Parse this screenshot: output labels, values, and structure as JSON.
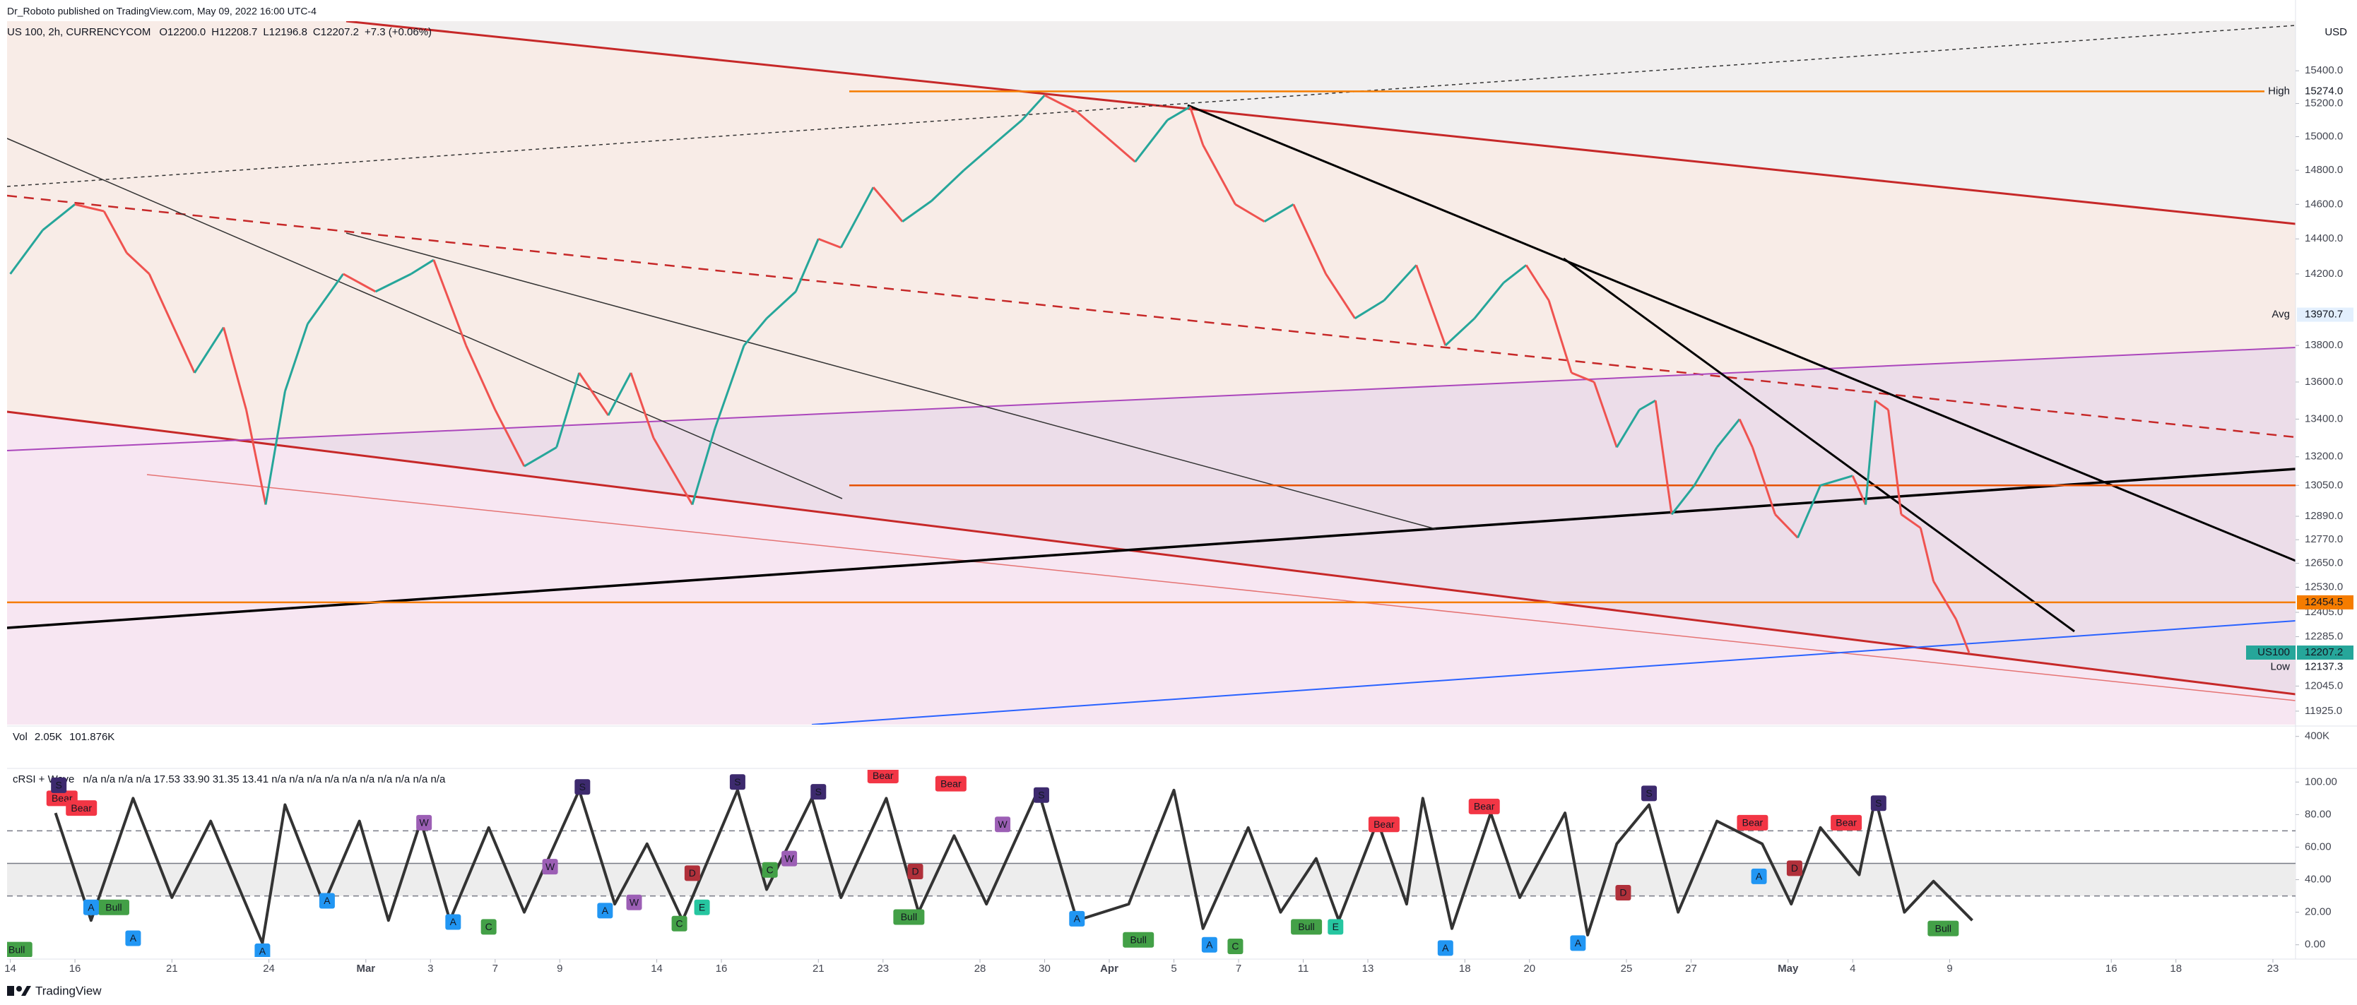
{
  "header": {
    "publisher": "Dr_Roboto published on TradingView.com, May 09, 2022 16:00 UTC-4",
    "footer": "TradingView"
  },
  "chart_data": [
    {
      "type": "candles",
      "title": "US 100, 2h, CURRENCYCOM",
      "legend_values": [
        "O12200.0",
        "H12208.7",
        "L12196.8",
        "C12207.2",
        "+7.3 (+0.06%)"
      ],
      "currency": "USD",
      "log_scale": true,
      "ylim": [
        11861,
        15708
      ],
      "xlim": [
        -0.1,
        70.7
      ],
      "yticks": [
        {
          "value": 15400,
          "label": "15400.0"
        },
        {
          "value": 15200,
          "label": "15200.0"
        },
        {
          "value": 15000,
          "label": "15000.0"
        },
        {
          "value": 14800,
          "label": "14800.0"
        },
        {
          "value": 14600,
          "label": "14600.0"
        },
        {
          "value": 14400,
          "label": "14400.0"
        },
        {
          "value": 14200,
          "label": "14200.0"
        },
        {
          "value": 13800,
          "label": "13800.0"
        },
        {
          "value": 13600,
          "label": "13600.0"
        },
        {
          "value": 13400,
          "label": "13400.0"
        },
        {
          "value": 13200,
          "label": "13200.0"
        },
        {
          "value": 13050,
          "label": "13050.0"
        },
        {
          "value": 12890,
          "label": "12890.0"
        },
        {
          "value": 12770,
          "label": "12770.0"
        },
        {
          "value": 12650,
          "label": "12650.0"
        },
        {
          "value": 12530,
          "label": "12530.0"
        },
        {
          "value": 12405,
          "label": "12405.0"
        },
        {
          "value": 12285,
          "label": "12285.0"
        },
        {
          "value": 12045,
          "label": "12045.0"
        },
        {
          "value": 11925,
          "label": "11925.0"
        }
      ],
      "xticks": [
        {
          "value": 0,
          "label": "14"
        },
        {
          "value": 2,
          "label": "16"
        },
        {
          "value": 5,
          "label": "21"
        },
        {
          "value": 8,
          "label": "24"
        },
        {
          "value": 11,
          "label": "Mar"
        },
        {
          "value": 13,
          "label": "3"
        },
        {
          "value": 15,
          "label": "7"
        },
        {
          "value": 17,
          "label": "9"
        },
        {
          "value": 20,
          "label": "14"
        },
        {
          "value": 22,
          "label": "16"
        },
        {
          "value": 25,
          "label": "21"
        },
        {
          "value": 27,
          "label": "23"
        },
        {
          "value": 30,
          "label": "28"
        },
        {
          "value": 32,
          "label": "30"
        },
        {
          "value": 34,
          "label": "Apr"
        },
        {
          "value": 36,
          "label": "5"
        },
        {
          "value": 38,
          "label": "7"
        },
        {
          "value": 40,
          "label": "11"
        },
        {
          "value": 42,
          "label": "13"
        },
        {
          "value": 45,
          "label": "18"
        },
        {
          "value": 47,
          "label": "20"
        },
        {
          "value": 50,
          "label": "25"
        },
        {
          "value": 52,
          "label": "27"
        },
        {
          "value": 55,
          "label": "May"
        },
        {
          "value": 57,
          "label": "4"
        },
        {
          "value": 60,
          "label": "9"
        },
        {
          "value": 65,
          "label": "16"
        },
        {
          "value": 67,
          "label": "18"
        },
        {
          "value": 70,
          "label": "23"
        }
      ],
      "x": [
        0,
        1.0,
        2.0,
        2.9,
        3.6,
        4.3,
        4.8,
        5.7,
        6.6,
        7.3,
        7.9,
        8.5,
        9.2,
        10.3,
        11.3,
        12.4,
        13.1,
        14.1,
        15.0,
        15.9,
        16.9,
        17.6,
        18.5,
        19.2,
        19.9,
        21.1,
        21.8,
        22.7,
        23.4,
        24.3,
        25.0,
        25.7,
        26.7,
        27.6,
        28.5,
        29.5,
        30.4,
        31.3,
        32.0,
        33.0,
        33.9,
        34.8,
        35.8,
        36.5,
        36.9,
        37.9,
        38.8,
        39.7,
        40.7,
        41.6,
        42.5,
        43.5,
        44.4,
        45.3,
        46.2,
        46.9,
        47.6,
        48.3,
        49.0,
        49.7,
        50.4,
        50.9,
        51.4,
        52.1,
        52.8,
        53.5,
        53.9,
        54.6,
        55.3,
        56.0,
        57.0,
        57.4,
        57.7,
        58.1,
        58.5,
        59.1,
        59.5,
        60.2,
        60.6
      ],
      "series": [
        {
          "name": "US100",
          "color_up": "#26a69a",
          "color_down": "#ef5350",
          "values": [
            14200,
            14450,
            14600,
            14560,
            14320,
            14200,
            14000,
            13650,
            13900,
            13450,
            12950,
            13550,
            13920,
            14200,
            14100,
            14200,
            14280,
            13800,
            13450,
            13150,
            13250,
            13650,
            13420,
            13650,
            13300,
            12950,
            13350,
            13800,
            13950,
            14100,
            14400,
            14350,
            14700,
            14500,
            14620,
            14800,
            14950,
            15100,
            15250,
            15150,
            15000,
            14850,
            15100,
            15180,
            14950,
            14600,
            14500,
            14600,
            14200,
            13950,
            14050,
            14250,
            13800,
            13950,
            14150,
            14250,
            14050,
            13650,
            13600,
            13250,
            13450,
            13500,
            12900,
            13050,
            13250,
            13400,
            13250,
            12900,
            12780,
            13050,
            13100,
            12950,
            13500,
            13450,
            12900,
            12830,
            12560,
            12370,
            12207.2
          ]
        }
      ],
      "levels": [
        {
          "name": "High",
          "value": 15274,
          "label": "15274.0",
          "color": "#f57c00"
        },
        {
          "name": "Avg",
          "value": 13970.7,
          "label": "13970.7",
          "color": "#e3effd"
        },
        {
          "name": "Low",
          "value": 12137.3,
          "label": "12137.3",
          "color": "#ffffff"
        }
      ],
      "markers": [
        {
          "value": 12454.5,
          "label": "12454.5",
          "color": "#f57c00"
        },
        {
          "name": "US100",
          "value": 12207.2,
          "label": "12207.2",
          "color": "#26a69a"
        }
      ],
      "hlines": [
        {
          "value": 13050,
          "color": "#e65100"
        }
      ]
    },
    {
      "type": "volume",
      "title": "Vol",
      "legend_values": [
        "2.05K",
        "101.876K"
      ],
      "ylim": [
        0,
        520000
      ],
      "yticks": [
        {
          "value": 400000,
          "label": "400K"
        }
      ]
    },
    {
      "type": "line",
      "title": "cRSI + Wave",
      "legend": "n/a n/a n/a n/a 17.53 33.90 31.35 13.41 n/a n/a n/a n/a n/a n/a n/a n/a n/a n/a",
      "ylim": [
        -7.5,
        107.5
      ],
      "yticks": [
        {
          "value": 100,
          "label": "100.00"
        },
        {
          "value": 80,
          "label": "80.00"
        },
        {
          "value": 60,
          "label": "60.00"
        },
        {
          "value": 40,
          "label": "40.00"
        },
        {
          "value": 20,
          "label": "20.00"
        },
        {
          "value": 0,
          "label": "0.00"
        }
      ],
      "levels": [
        70,
        50,
        30
      ],
      "x": [
        1.4,
        2.5,
        3.8,
        5.0,
        6.2,
        7.8,
        8.5,
        9.7,
        10.8,
        11.7,
        12.7,
        13.6,
        14.8,
        15.9,
        17.6,
        18.7,
        19.7,
        20.8,
        22.5,
        23.4,
        24.8,
        25.7,
        27.1,
        28.1,
        29.2,
        30.2,
        31.8,
        33.0,
        34.6,
        36.0,
        36.9,
        38.3,
        39.3,
        40.4,
        41.1,
        42.3,
        43.2,
        43.7,
        44.6,
        45.8,
        46.7,
        48.1,
        48.8,
        49.7,
        50.7,
        51.6,
        52.8,
        54.2,
        55.1,
        56.0,
        57.2,
        57.7,
        58.6,
        59.5,
        60.7
      ],
      "series": [
        {
          "color": "#333333",
          "values": [
            81,
            15,
            90,
            29,
            76,
            1,
            86,
            25,
            76,
            15,
            76,
            15,
            72,
            20,
            95,
            25,
            62,
            15,
            95,
            34,
            90,
            29,
            90,
            20,
            67,
            25,
            95,
            15,
            25,
            95,
            10,
            72,
            20,
            53,
            15,
            76,
            25,
            90,
            10,
            81,
            29,
            81,
            6,
            62,
            86,
            20,
            76,
            62,
            25,
            72,
            43,
            90,
            20,
            39,
            15
          ]
        }
      ],
      "badge_colors": {
        "Bear": "#f23645",
        "Bull": "#43a047",
        "A": "#2196f3",
        "C": "#43a047",
        "E": "#26c6a0",
        "S": "#3d2a6e",
        "W": "#9c5fb5",
        "D": "#b0303a"
      },
      "badges": [
        {
          "text": "Bear",
          "x": 1.6,
          "y": 90
        },
        {
          "text": "Bear",
          "x": 2.2,
          "y": 84
        },
        {
          "text": "Bear",
          "x": 27.0,
          "y": 104
        },
        {
          "text": "Bear",
          "x": 29.1,
          "y": 99
        },
        {
          "text": "Bear",
          "x": 42.5,
          "y": 74
        },
        {
          "text": "Bear",
          "x": 45.6,
          "y": 85
        },
        {
          "text": "Bear",
          "x": 53.9,
          "y": 75
        },
        {
          "text": "Bear",
          "x": 56.8,
          "y": 75
        },
        {
          "text": "Bull",
          "x": 0.2,
          "y": -3
        },
        {
          "text": "Bull",
          "x": 3.2,
          "y": 23
        },
        {
          "text": "Bull",
          "x": 27.8,
          "y": 17
        },
        {
          "text": "Bull",
          "x": 34.9,
          "y": 3
        },
        {
          "text": "Bull",
          "x": 40.1,
          "y": 11
        },
        {
          "text": "Bull",
          "x": 59.8,
          "y": 10
        },
        {
          "text": "A",
          "x": 2.5,
          "y": 23
        },
        {
          "text": "A",
          "x": 3.8,
          "y": 4
        },
        {
          "text": "A",
          "x": 7.8,
          "y": -4
        },
        {
          "text": "A",
          "x": 9.8,
          "y": 27
        },
        {
          "text": "A",
          "x": 13.7,
          "y": 14
        },
        {
          "text": "A",
          "x": 18.4,
          "y": 21
        },
        {
          "text": "A",
          "x": 33.0,
          "y": 16
        },
        {
          "text": "A",
          "x": 37.1,
          "y": 0
        },
        {
          "text": "A",
          "x": 44.4,
          "y": -2
        },
        {
          "text": "A",
          "x": 48.5,
          "y": 1
        },
        {
          "text": "A",
          "x": 54.1,
          "y": 42
        },
        {
          "text": "C",
          "x": 14.8,
          "y": 11
        },
        {
          "text": "C",
          "x": 20.7,
          "y": 13
        },
        {
          "text": "C",
          "x": 37.9,
          "y": -1
        },
        {
          "text": "C",
          "x": 23.5,
          "y": 46
        },
        {
          "text": "E",
          "x": 21.4,
          "y": 23
        },
        {
          "text": "E",
          "x": 41.0,
          "y": 11
        },
        {
          "text": "S",
          "x": 1.5,
          "y": 98
        },
        {
          "text": "S",
          "x": 17.7,
          "y": 97
        },
        {
          "text": "S",
          "x": 22.5,
          "y": 100
        },
        {
          "text": "S",
          "x": 25.0,
          "y": 94
        },
        {
          "text": "S",
          "x": 31.9,
          "y": 92
        },
        {
          "text": "S",
          "x": 50.7,
          "y": 93
        },
        {
          "text": "S",
          "x": 57.8,
          "y": 87
        },
        {
          "text": "W",
          "x": 12.8,
          "y": 75
        },
        {
          "text": "W",
          "x": 16.7,
          "y": 48
        },
        {
          "text": "W",
          "x": 19.3,
          "y": 26
        },
        {
          "text": "W",
          "x": 24.1,
          "y": 53
        },
        {
          "text": "W",
          "x": 30.7,
          "y": 74
        },
        {
          "text": "D",
          "x": 21.1,
          "y": 44
        },
        {
          "text": "D",
          "x": 28.0,
          "y": 45
        },
        {
          "text": "D",
          "x": 55.2,
          "y": 47
        },
        {
          "text": "D",
          "x": 49.9,
          "y": 32
        }
      ]
    }
  ]
}
